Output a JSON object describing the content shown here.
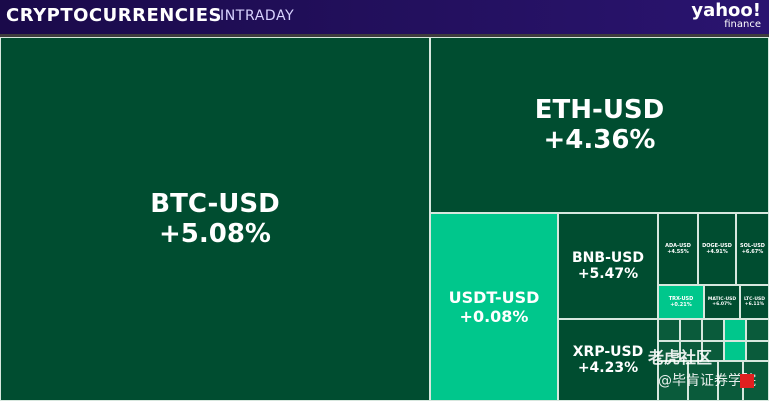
{
  "header": {
    "title": "CRYPTOCURRENCIES",
    "subtitle": "INTRADAY",
    "brand_line1": "yahoo!",
    "brand_line2": "finance"
  },
  "colors": {
    "dark_green": "#004d30",
    "bright_green": "#00c78c",
    "mid_green": "#1a7f55",
    "border": "#d7e7de"
  },
  "chart_data": {
    "type": "treemap",
    "title": "CRYPTOCURRENCIES",
    "subtitle": "INTRADAY",
    "tiles": [
      {
        "symbol": "BTC-USD",
        "change": "+5.08%",
        "value": 5.08
      },
      {
        "symbol": "ETH-USD",
        "change": "+4.36%",
        "value": 4.36
      },
      {
        "symbol": "USDT-USD",
        "change": "+0.08%",
        "value": 0.08
      },
      {
        "symbol": "BNB-USD",
        "change": "+5.47%",
        "value": 5.47
      },
      {
        "symbol": "XRP-USD",
        "change": "+4.23%",
        "value": 4.23
      },
      {
        "symbol": "ADA-USD",
        "change": "+4.55%",
        "value": 4.55
      },
      {
        "symbol": "DOGE-USD",
        "change": "+4.91%",
        "value": 4.91
      },
      {
        "symbol": "SOL-USD",
        "change": "+6.67%",
        "value": 6.67
      },
      {
        "symbol": "TRX-USD",
        "change": "+0.21%",
        "value": 0.21
      },
      {
        "symbol": "MATIC-USD",
        "change": "+6.07%",
        "value": 6.07
      },
      {
        "symbol": "LTC-USD",
        "change": "+6.11%",
        "value": 6.11
      }
    ]
  },
  "watermark": {
    "line1": "老虎社区",
    "line2": "@毕肯证券学院"
  }
}
